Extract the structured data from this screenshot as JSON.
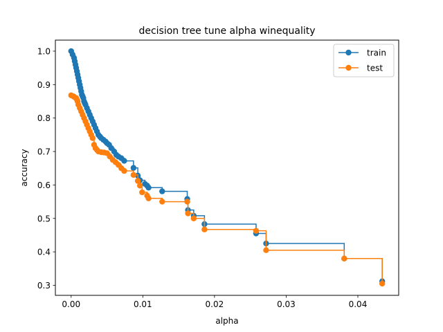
{
  "chart_data": {
    "type": "line",
    "title": "decision tree tune alpha winequality",
    "xlabel": "alpha",
    "ylabel": "accuracy",
    "xlim": [
      -0.0022,
      0.0457
    ],
    "ylim": [
      0.27,
      1.033
    ],
    "xticks": [
      0.0,
      0.01,
      0.02,
      0.03,
      0.04
    ],
    "xtick_labels": [
      "0.00",
      "0.01",
      "0.02",
      "0.03",
      "0.04"
    ],
    "yticks": [
      0.3,
      0.4,
      0.5,
      0.6,
      0.7,
      0.8,
      0.9,
      1.0
    ],
    "ytick_labels": [
      "0.3",
      "0.4",
      "0.5",
      "0.6",
      "0.7",
      "0.8",
      "0.9",
      "1.0"
    ],
    "drawstyle": "steps-post",
    "marker": "circle",
    "grid": false,
    "legend": "top-right",
    "series": [
      {
        "name": "train",
        "color": "#1f77b4",
        "x": [
          0.0,
          0.0002,
          0.0004,
          0.0005,
          0.0006,
          0.0007,
          0.0008,
          0.0009,
          0.001,
          0.0011,
          0.0012,
          0.0013,
          0.0014,
          0.0015,
          0.0016,
          0.0017,
          0.0018,
          0.0019,
          0.002,
          0.0022,
          0.0024,
          0.0026,
          0.0028,
          0.003,
          0.0032,
          0.0034,
          0.0036,
          0.0038,
          0.004,
          0.0042,
          0.0045,
          0.0048,
          0.005,
          0.0053,
          0.0056,
          0.006,
          0.0063,
          0.0066,
          0.007,
          0.0074,
          0.0087,
          0.0093,
          0.0096,
          0.0103,
          0.0106,
          0.0108,
          0.0127,
          0.0162,
          0.0163,
          0.0171,
          0.0186,
          0.0258,
          0.0272,
          0.0381,
          0.0434
        ],
        "y": [
          1.0,
          0.99,
          0.98,
          0.97,
          0.96,
          0.95,
          0.94,
          0.93,
          0.92,
          0.91,
          0.9,
          0.89,
          0.88,
          0.87,
          0.865,
          0.86,
          0.85,
          0.845,
          0.84,
          0.83,
          0.82,
          0.81,
          0.8,
          0.79,
          0.78,
          0.77,
          0.76,
          0.75,
          0.745,
          0.74,
          0.735,
          0.73,
          0.725,
          0.72,
          0.71,
          0.7,
          0.69,
          0.685,
          0.68,
          0.672,
          0.651,
          0.628,
          0.614,
          0.603,
          0.598,
          0.592,
          0.581,
          0.558,
          0.525,
          0.508,
          0.483,
          0.455,
          0.425,
          0.38,
          0.312
        ]
      },
      {
        "name": "test",
        "color": "#ff7f0e",
        "x": [
          0.0,
          0.0003,
          0.0005,
          0.0007,
          0.0008,
          0.0009,
          0.001,
          0.0012,
          0.0014,
          0.0016,
          0.0018,
          0.002,
          0.0022,
          0.0024,
          0.0026,
          0.0028,
          0.003,
          0.0032,
          0.0034,
          0.0036,
          0.0038,
          0.0042,
          0.0046,
          0.005,
          0.0054,
          0.0058,
          0.0062,
          0.0066,
          0.007,
          0.0074,
          0.0087,
          0.0093,
          0.0096,
          0.0099,
          0.0106,
          0.0108,
          0.0127,
          0.0162,
          0.0163,
          0.0171,
          0.0186,
          0.0258,
          0.0272,
          0.0381,
          0.0434
        ],
        "y": [
          0.868,
          0.865,
          0.862,
          0.86,
          0.855,
          0.85,
          0.84,
          0.83,
          0.82,
          0.81,
          0.8,
          0.79,
          0.78,
          0.77,
          0.76,
          0.75,
          0.74,
          0.72,
          0.71,
          0.705,
          0.7,
          0.698,
          0.697,
          0.695,
          0.685,
          0.675,
          0.668,
          0.66,
          0.65,
          0.642,
          0.63,
          0.612,
          0.598,
          0.578,
          0.568,
          0.56,
          0.55,
          0.55,
          0.515,
          0.5,
          0.467,
          0.463,
          0.405,
          0.38,
          0.305
        ]
      }
    ]
  }
}
